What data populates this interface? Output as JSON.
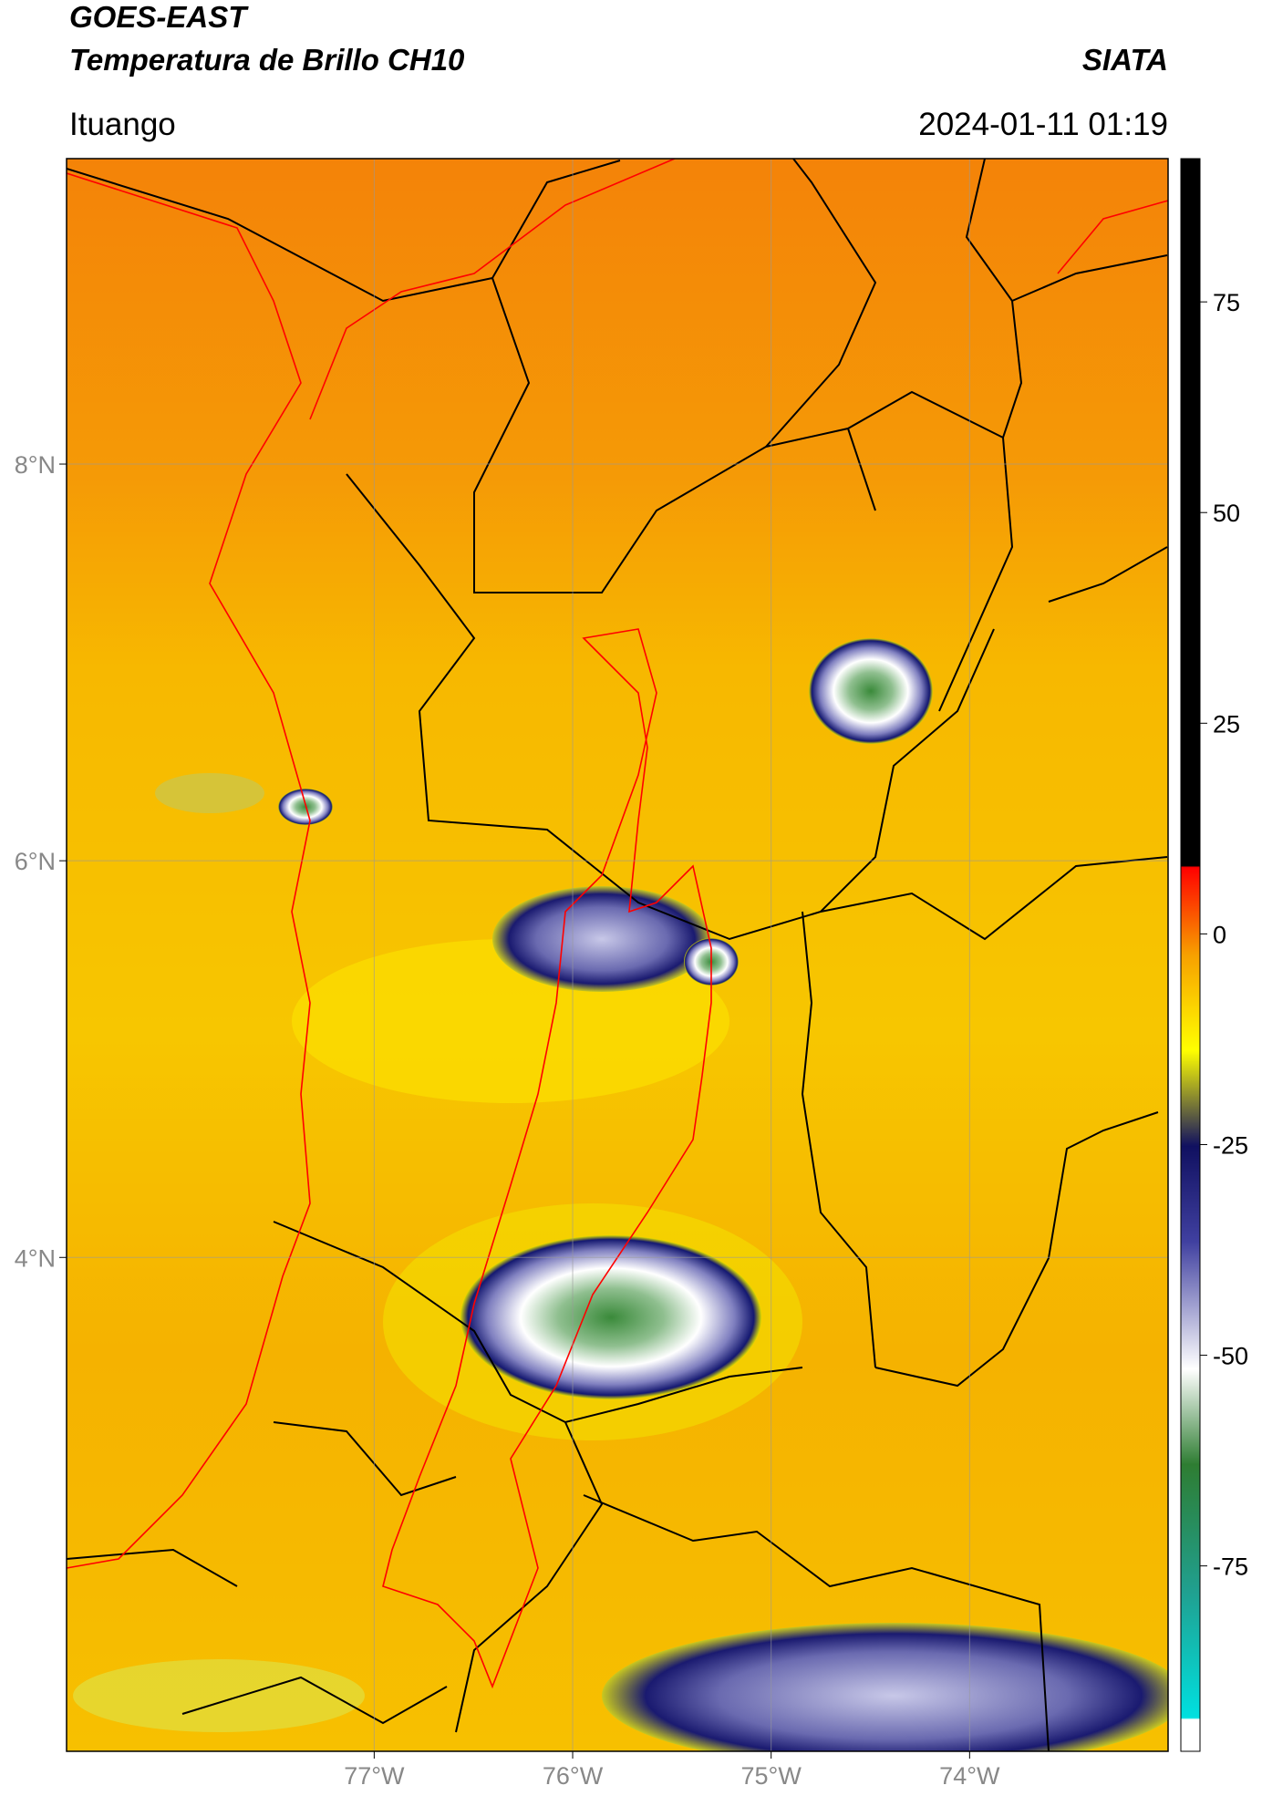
{
  "header": {
    "title": "GOES-EAST",
    "subtitle": "Temperatura de Brillo CH10",
    "source": "SIATA",
    "location": "Ituango",
    "datetime": "2024-01-11 01:19"
  },
  "map": {
    "lonlim": [
      -78.55,
      -73.0
    ],
    "latlim": [
      1.51,
      9.54
    ],
    "lon_ticks": [
      {
        "value": -77,
        "label": "77°W"
      },
      {
        "value": -76,
        "label": "76°W"
      },
      {
        "value": -75,
        "label": "75°W"
      },
      {
        "value": -74,
        "label": "74°W"
      }
    ],
    "lat_ticks": [
      {
        "value": 8,
        "label": "8°N"
      },
      {
        "value": 6,
        "label": "6°N"
      },
      {
        "value": 4,
        "label": "4°N"
      }
    ],
    "colorbar": {
      "lim": [
        -97,
        92
      ],
      "ticks": [
        75,
        50,
        25,
        0,
        -25,
        -50,
        -75
      ]
    }
  }
}
